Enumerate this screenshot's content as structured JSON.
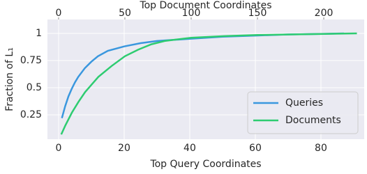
{
  "chart_data": {
    "type": "line",
    "xlabel": "Top Query Coordinates",
    "x2label": "Top Document Coordinates",
    "ylabel": "Fraction of L₁",
    "xlim": [
      -3.4,
      93.2
    ],
    "xticks": [
      0,
      20,
      40,
      60,
      80
    ],
    "x2lim": [
      -8.4,
      230.5
    ],
    "x2ticks": [
      0,
      50,
      100,
      150,
      200
    ],
    "ylim": [
      0.026,
      1.128
    ],
    "yticks": [
      0.25,
      0.5,
      0.75,
      1
    ],
    "grid": true,
    "legend": "lower right",
    "series": [
      {
        "name": "Queries",
        "color": "#3a97de",
        "axis": "x",
        "x": [
          1,
          2,
          3,
          4,
          5,
          6,
          8,
          10,
          12,
          15,
          20,
          25,
          30,
          35,
          40,
          50,
          60,
          70,
          80,
          87
        ],
        "values": [
          0.22,
          0.33,
          0.42,
          0.49,
          0.55,
          0.6,
          0.68,
          0.74,
          0.79,
          0.84,
          0.88,
          0.91,
          0.93,
          0.94,
          0.95,
          0.97,
          0.98,
          0.99,
          0.995,
          1
        ]
      },
      {
        "name": "Documents",
        "color": "#2ecc71",
        "axis": "x2",
        "x": [
          2,
          5,
          10,
          15,
          20,
          25,
          30,
          40,
          50,
          60,
          70,
          80,
          100,
          125,
          150,
          175,
          200,
          225
        ],
        "values": [
          0.07,
          0.15,
          0.27,
          0.37,
          0.46,
          0.53,
          0.6,
          0.7,
          0.79,
          0.85,
          0.9,
          0.93,
          0.96,
          0.975,
          0.985,
          0.99,
          0.995,
          1
        ]
      }
    ]
  }
}
